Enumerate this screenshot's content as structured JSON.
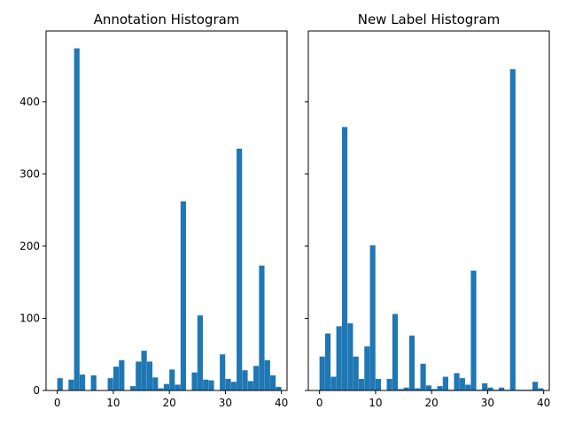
{
  "chart_data": [
    {
      "type": "bar",
      "title": "Annotation Histogram",
      "xlabel": "",
      "ylabel": "",
      "xlim": [
        -2,
        41
      ],
      "ylim": [
        0,
        498
      ],
      "xticks": [
        0,
        10,
        20,
        30,
        40
      ],
      "yticks": [
        0,
        100,
        200,
        300,
        400
      ],
      "bar_width": 0.975,
      "color": "#1f77b4",
      "bins": [
        {
          "x": 0,
          "value": 17
        },
        {
          "x": 2,
          "value": 15
        },
        {
          "x": 3,
          "value": 474
        },
        {
          "x": 4,
          "value": 22
        },
        {
          "x": 6,
          "value": 21
        },
        {
          "x": 9,
          "value": 17
        },
        {
          "x": 10,
          "value": 33
        },
        {
          "x": 11,
          "value": 42
        },
        {
          "x": 13,
          "value": 6
        },
        {
          "x": 14,
          "value": 40
        },
        {
          "x": 15,
          "value": 55
        },
        {
          "x": 16,
          "value": 40
        },
        {
          "x": 17,
          "value": 18
        },
        {
          "x": 18,
          "value": 3
        },
        {
          "x": 19,
          "value": 9
        },
        {
          "x": 20,
          "value": 29
        },
        {
          "x": 21,
          "value": 8
        },
        {
          "x": 22,
          "value": 262
        },
        {
          "x": 24,
          "value": 25
        },
        {
          "x": 25,
          "value": 104
        },
        {
          "x": 26,
          "value": 15
        },
        {
          "x": 27,
          "value": 14
        },
        {
          "x": 29,
          "value": 50
        },
        {
          "x": 30,
          "value": 16
        },
        {
          "x": 31,
          "value": 12
        },
        {
          "x": 32,
          "value": 335
        },
        {
          "x": 33,
          "value": 28
        },
        {
          "x": 34,
          "value": 13
        },
        {
          "x": 35,
          "value": 34
        },
        {
          "x": 36,
          "value": 173
        },
        {
          "x": 37,
          "value": 42
        },
        {
          "x": 38,
          "value": 21
        },
        {
          "x": 39,
          "value": 5
        }
      ]
    },
    {
      "type": "bar",
      "title": "New Label Histogram",
      "xlabel": "",
      "ylabel": "",
      "xlim": [
        -2,
        41
      ],
      "ylim": [
        0,
        498
      ],
      "xticks": [
        0,
        10,
        20,
        30,
        40
      ],
      "yticks": [
        0,
        100,
        200,
        300,
        400
      ],
      "bar_width": 0.975,
      "color": "#1f77b4",
      "bins": [
        {
          "x": 0,
          "value": 47
        },
        {
          "x": 1,
          "value": 79
        },
        {
          "x": 2,
          "value": 19
        },
        {
          "x": 3,
          "value": 89
        },
        {
          "x": 4,
          "value": 365
        },
        {
          "x": 5,
          "value": 93
        },
        {
          "x": 6,
          "value": 47
        },
        {
          "x": 7,
          "value": 16
        },
        {
          "x": 8,
          "value": 61
        },
        {
          "x": 9,
          "value": 201
        },
        {
          "x": 10,
          "value": 16
        },
        {
          "x": 12,
          "value": 16
        },
        {
          "x": 13,
          "value": 106
        },
        {
          "x": 14,
          "value": 2
        },
        {
          "x": 15,
          "value": 4
        },
        {
          "x": 16,
          "value": 76
        },
        {
          "x": 17,
          "value": 3
        },
        {
          "x": 18,
          "value": 37
        },
        {
          "x": 19,
          "value": 7
        },
        {
          "x": 20,
          "value": 2
        },
        {
          "x": 21,
          "value": 6
        },
        {
          "x": 22,
          "value": 19
        },
        {
          "x": 23,
          "value": 1
        },
        {
          "x": 24,
          "value": 24
        },
        {
          "x": 25,
          "value": 17
        },
        {
          "x": 26,
          "value": 8
        },
        {
          "x": 27,
          "value": 166
        },
        {
          "x": 28,
          "value": 1
        },
        {
          "x": 29,
          "value": 10
        },
        {
          "x": 30,
          "value": 4
        },
        {
          "x": 31,
          "value": 1
        },
        {
          "x": 32,
          "value": 4
        },
        {
          "x": 33,
          "value": 1
        },
        {
          "x": 34,
          "value": 445
        },
        {
          "x": 35,
          "value": 1
        },
        {
          "x": 36,
          "value": 1
        },
        {
          "x": 37,
          "value": 1
        },
        {
          "x": 38,
          "value": 12
        },
        {
          "x": 39,
          "value": 3
        }
      ]
    }
  ]
}
